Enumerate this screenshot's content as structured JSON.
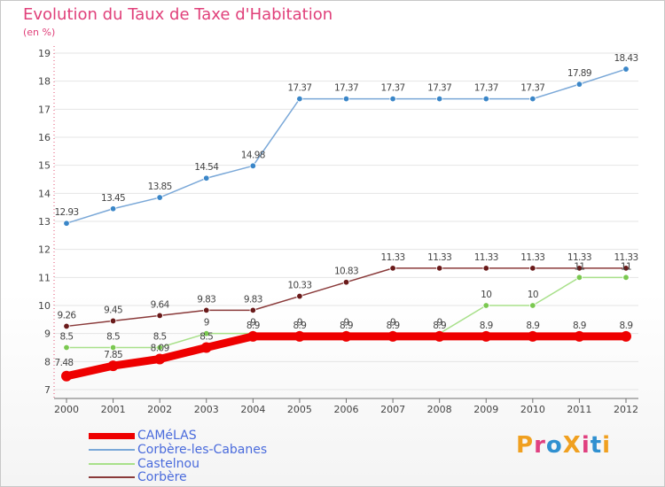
{
  "header": {
    "title": "Evolution du Taux de Taxe d'Habitation",
    "units": "(en %)"
  },
  "logo": {
    "text": "ProXiti",
    "colors": [
      "#f0a020",
      "#e04080",
      "#3090d0",
      "#f0a020",
      "#e04080",
      "#3090d0",
      "#f0a020"
    ]
  },
  "chart_data": {
    "type": "line",
    "xlabel": "",
    "ylabel": "",
    "x": [
      "2000",
      "2001",
      "2002",
      "2003",
      "2004",
      "2005",
      "2006",
      "2007",
      "2008",
      "2009",
      "2010",
      "2011",
      "2012"
    ],
    "ylim": [
      7,
      19
    ],
    "yticks": [
      "7",
      "8",
      "9",
      "10",
      "11",
      "12",
      "13",
      "14",
      "15",
      "16",
      "17",
      "18",
      "19"
    ],
    "legend_position": "bottom-left",
    "series": [
      {
        "name": "CAMéLAS",
        "color": "#ee0000",
        "thick": true,
        "values": [
          7.48,
          7.85,
          8.09,
          8.5,
          8.9,
          8.9,
          8.9,
          8.9,
          8.9,
          8.9,
          8.9,
          8.9,
          8.9
        ],
        "labels": [
          "7.48",
          "7.85",
          "8.09",
          "8.5",
          "8.9",
          "8.9",
          "8.9",
          "8.9",
          "8.9",
          "8.9",
          "8.9",
          "8.9",
          "8.9"
        ]
      },
      {
        "name": "Corbère-les-Cabanes",
        "color": "#7aa8d8",
        "marker": "#3a86c8",
        "values": [
          12.93,
          13.45,
          13.85,
          14.54,
          14.98,
          17.37,
          17.37,
          17.37,
          17.37,
          17.37,
          17.37,
          17.89,
          18.43
        ],
        "labels": [
          "12.93",
          "13.45",
          "13.85",
          "14.54",
          "14.98",
          "17.37",
          "17.37",
          "17.37",
          "17.37",
          "17.37",
          "17.37",
          "17.89",
          "18.43"
        ]
      },
      {
        "name": "Castelnou",
        "color": "#a8e08a",
        "marker": "#7ac850",
        "values": [
          8.5,
          8.5,
          8.5,
          9,
          9,
          9,
          9,
          9,
          9,
          10,
          10,
          11,
          11
        ],
        "labels": [
          "8.5",
          "8.5",
          "8.5",
          "9",
          "9",
          "9",
          "9",
          "9",
          "9",
          "10",
          "10",
          "11",
          "11"
        ]
      },
      {
        "name": "Corbère",
        "color": "#8a3a3a",
        "marker": "#6a1a1a",
        "values": [
          9.26,
          9.45,
          9.64,
          9.83,
          9.83,
          10.33,
          10.83,
          11.33,
          11.33,
          11.33,
          11.33,
          11.33,
          11.33
        ],
        "labels": [
          "9.26",
          "9.45",
          "9.64",
          "9.83",
          "9.83",
          "10.33",
          "10.83",
          "11.33",
          "11.33",
          "11.33",
          "11.33",
          "11.33",
          "11.33"
        ]
      }
    ]
  }
}
